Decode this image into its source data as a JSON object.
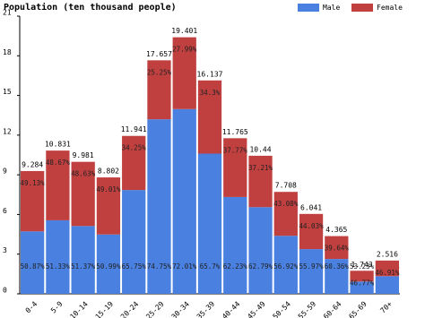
{
  "chart_data": {
    "type": "stacked_bar",
    "title": "Population (ten thousand people)",
    "categories": [
      "0-4",
      "5-9",
      "10-14",
      "15-19",
      "20-24",
      "25-29",
      "30-34",
      "35-39",
      "40-44",
      "45-49",
      "50-54",
      "55-59",
      "60-64",
      "65-69",
      "70+"
    ],
    "series": [
      {
        "name": "Male",
        "color": "#4a80e0",
        "values": [
          4.723,
          5.56,
          5.127,
          4.488,
          7.851,
          13.199,
          13.971,
          10.602,
          7.321,
          6.555,
          4.387,
          3.381,
          2.635,
          0.928,
          1.336
        ],
        "percent_labels": [
          "50.87%",
          "51.33%",
          "51.37%",
          "50.99%",
          "65.75%",
          "74.75%",
          "72.01%",
          "65.7%",
          "62.23%",
          "62.79%",
          "56.92%",
          "55.97%",
          "60.36%",
          "53.23%",
          "53.09%"
        ]
      },
      {
        "name": "Female",
        "color": "#c04040",
        "values": [
          4.561,
          5.271,
          4.854,
          4.314,
          4.09,
          4.458,
          5.43,
          5.535,
          4.444,
          3.885,
          3.321,
          2.66,
          1.73,
          0.815,
          1.18
        ],
        "percent_labels": [
          "49.13%",
          "48.67%",
          "48.63%",
          "49.01%",
          "34.25%",
          "25.25%",
          "27.99%",
          "34.3%",
          "37.77%",
          "37.21%",
          "43.08%",
          "44.03%",
          "39.64%",
          "46.77%",
          "46.91%"
        ]
      }
    ],
    "totals": [
      9.284,
      10.831,
      9.981,
      8.802,
      11.941,
      17.657,
      19.401,
      16.137,
      11.765,
      10.44,
      7.708,
      6.041,
      4.365,
      1.743,
      2.516
    ],
    "ylim": [
      0,
      21
    ],
    "yticks": [
      0,
      3,
      6,
      9,
      12,
      15,
      18,
      21
    ],
    "legend": "top-right"
  }
}
